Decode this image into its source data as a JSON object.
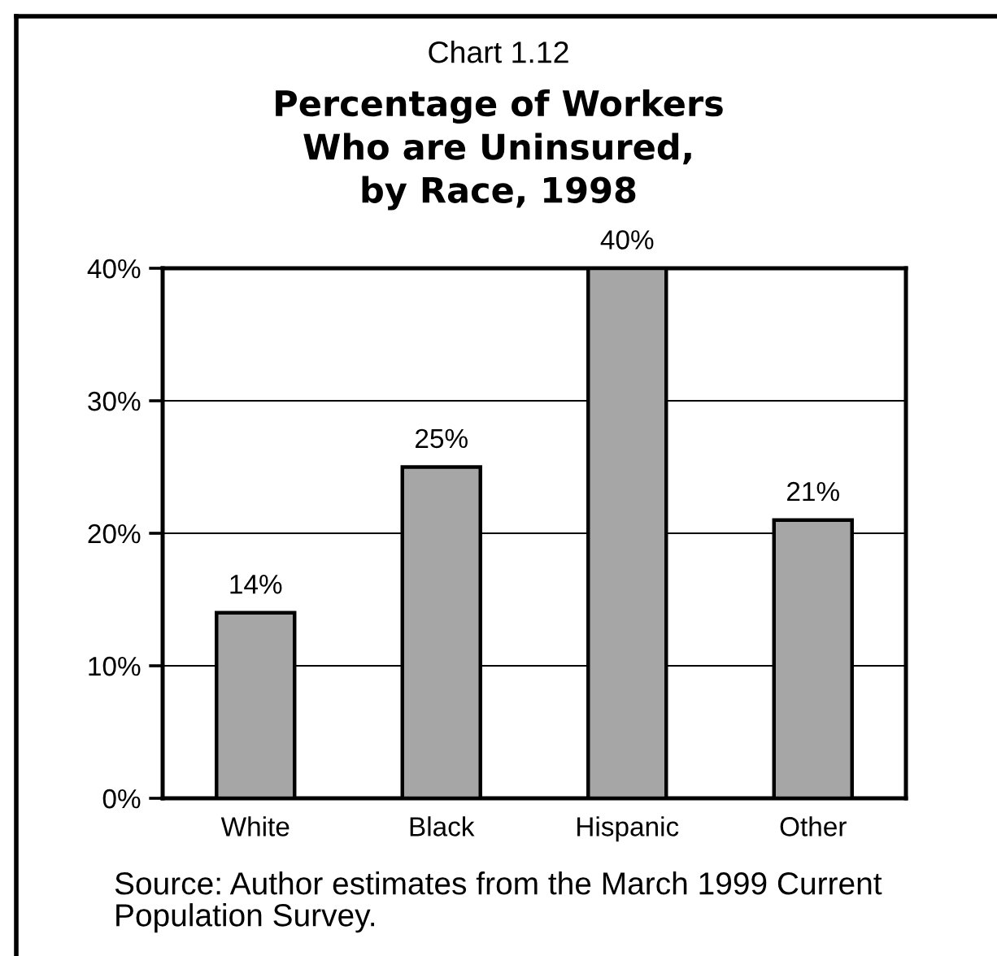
{
  "chart_data": {
    "type": "bar",
    "title": "Chart 1.12",
    "subtitle": "Percentage of Workers\nWho are Uninsured,\nby Race, 1998",
    "categories": [
      "White",
      "Black",
      "Hispanic",
      "Other"
    ],
    "values": [
      14,
      25,
      40,
      21
    ],
    "color": "#a6a6a6",
    "value_labels": [
      "14%",
      "25%",
      "40%",
      "21%"
    ],
    "ylim": [
      0,
      40
    ],
    "yticks": [
      {
        "value": 0,
        "label": "0%"
      },
      {
        "value": 10,
        "label": "10%"
      },
      {
        "value": 20,
        "label": "20%"
      },
      {
        "value": 30,
        "label": "30%"
      },
      {
        "value": 40,
        "label": "40%"
      }
    ],
    "grid": "y",
    "annotations": [
      "Source: Author estimates from the March 1999 Current Population Survey."
    ]
  }
}
